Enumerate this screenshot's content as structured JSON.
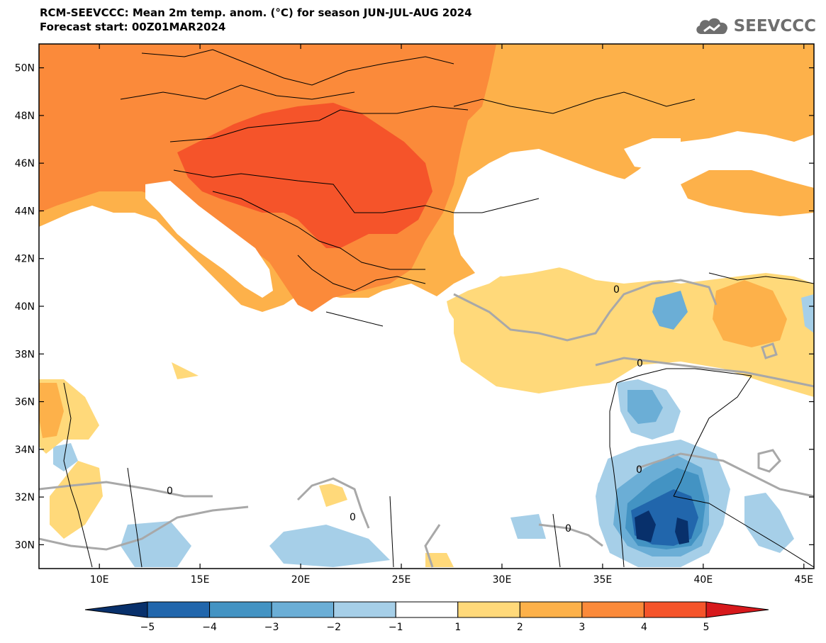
{
  "title": {
    "line1": "RCM-SEEVCCC: Mean 2m temp. anom. (°C) for season JUN-JUL-AUG 2024",
    "line2": "Forecast start: 00Z01MAR2024"
  },
  "logo": {
    "text": "SEEVCCC",
    "icon": "cloud-icon"
  },
  "map": {
    "lon_range": [
      7,
      45.5
    ],
    "lat_range": [
      29,
      51
    ],
    "lat_ticks": [
      "50N",
      "48N",
      "46N",
      "44N",
      "42N",
      "40N",
      "38N",
      "36N",
      "34N",
      "32N",
      "30N"
    ],
    "lon_ticks": [
      "10E",
      "15E",
      "20E",
      "25E",
      "30E",
      "35E",
      "40E",
      "45E"
    ],
    "contour_label": "0",
    "land_color": "#ffffff",
    "sea_color": "#ffffff"
  },
  "colorbar": {
    "levels": [
      "-5",
      "-4",
      "-3",
      "-2",
      "-1",
      "1",
      "2",
      "3",
      "4",
      "5"
    ],
    "colors": [
      "#08306b",
      "#2166ac",
      "#4393c3",
      "#6baed6",
      "#a6cfe8",
      "#ffffff",
      "#ffd97a",
      "#fdb14a",
      "#fb8a3a",
      "#f5542a",
      "#d7191c"
    ]
  }
}
